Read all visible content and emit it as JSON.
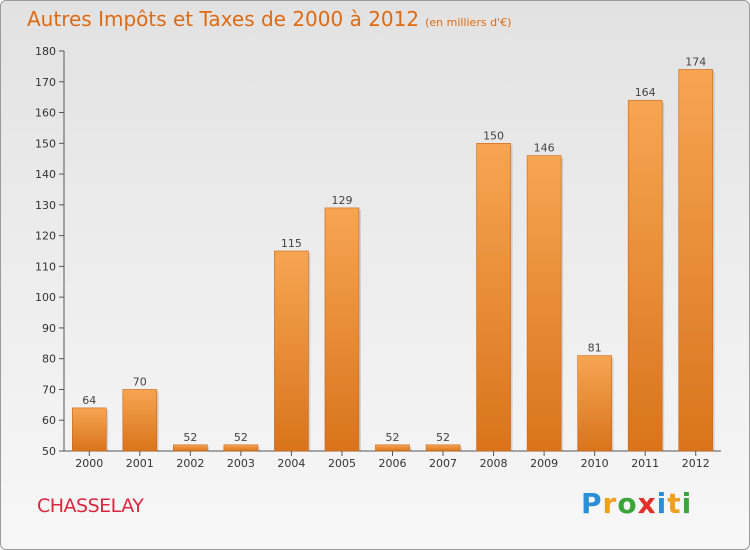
{
  "title": "Autres Impôts et Taxes de 2000 à 2012",
  "subtitle": "(en milliers d'€)",
  "commune": "CHASSELAY",
  "brand": {
    "letters": [
      {
        "char": "P",
        "color": "#2b8fd6"
      },
      {
        "char": "r",
        "color": "#f0a020"
      },
      {
        "char": "o",
        "color": "#3aa63a"
      },
      {
        "char": "x",
        "color": "#e0302a"
      },
      {
        "char": "i",
        "color": "#2b8fd6"
      },
      {
        "char": "t",
        "color": "#f0a020"
      },
      {
        "char": "i",
        "color": "#3aa63a"
      }
    ]
  },
  "colors": {
    "bar_light": "#f7a552",
    "bar_dark": "#d9741c",
    "title": "#e06a10",
    "commune": "#d9273f"
  },
  "chart_data": {
    "type": "bar",
    "title": "Autres Impôts et Taxes de 2000 à 2012",
    "subtitle": "(en milliers d'€)",
    "categories": [
      "2000",
      "2001",
      "2002",
      "2003",
      "2004",
      "2005",
      "2006",
      "2007",
      "2008",
      "2009",
      "2010",
      "2011",
      "2012"
    ],
    "values": [
      64,
      70,
      52,
      52,
      115,
      129,
      52,
      52,
      150,
      146,
      81,
      164,
      174
    ],
    "xlabel": "",
    "ylabel": "",
    "ylim": [
      50,
      180
    ],
    "yticks": [
      50,
      60,
      70,
      80,
      90,
      100,
      110,
      120,
      130,
      140,
      150,
      160,
      170,
      180
    ],
    "grid": false,
    "legend": "none"
  }
}
